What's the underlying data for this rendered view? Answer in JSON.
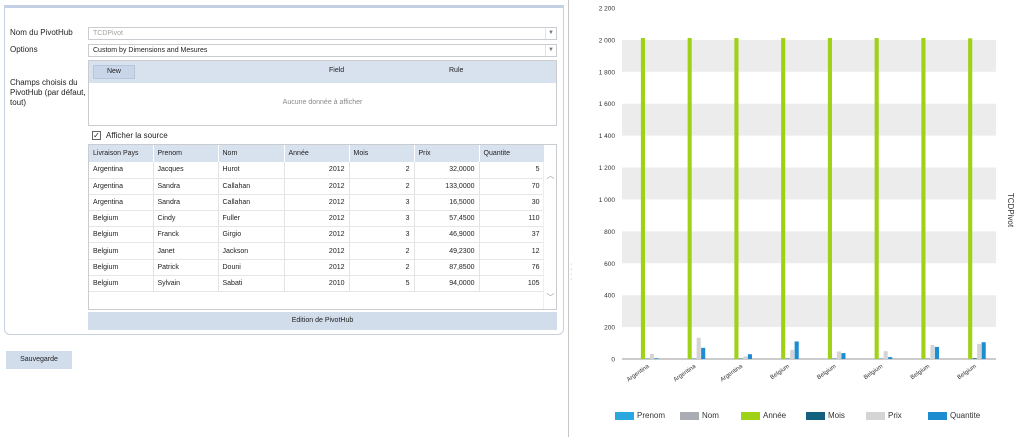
{
  "form": {
    "name_label": "Nom du PivotHub",
    "name_value": "TCDPivot",
    "options_label": "Options",
    "options_value": "Custom by Dimensions and Mesures",
    "fields_label": "Champs choisis du PivotHub (par défaut, tout)",
    "fields_header": {
      "new_button": "New",
      "field": "Field",
      "rule": "Rule"
    },
    "fields_empty": "Aucune donnée à afficher",
    "show_source_label": "Afficher la source",
    "show_source_checked": "✓",
    "edit_button": "Edition de PivotHub",
    "save_button": "Sauvegarde"
  },
  "grid": {
    "columns": [
      "Livraison Pays",
      "Prenom",
      "Nom",
      "Année",
      "Mois",
      "Prix",
      "Quantite"
    ],
    "rows": [
      [
        "Argentina",
        "Jacques",
        "Hurot",
        "2012",
        "2",
        "32,0000",
        "5"
      ],
      [
        "Argentina",
        "Sandra",
        "Callahan",
        "2012",
        "2",
        "133,0000",
        "70"
      ],
      [
        "Argentina",
        "Sandra",
        "Callahan",
        "2012",
        "3",
        "16,5000",
        "30"
      ],
      [
        "Belgium",
        "Cindy",
        "Fuller",
        "2012",
        "3",
        "57,4500",
        "110"
      ],
      [
        "Belgium",
        "Franck",
        "Girgio",
        "2012",
        "3",
        "46,9000",
        "37"
      ],
      [
        "Belgium",
        "Janet",
        "Jackson",
        "2012",
        "2",
        "49,2300",
        "12"
      ],
      [
        "Belgium",
        "Patrick",
        "Douni",
        "2012",
        "2",
        "87,8500",
        "76"
      ],
      [
        "Belgium",
        "Sylvain",
        "Sabati",
        "2010",
        "5",
        "94,0000",
        "105"
      ]
    ]
  },
  "chart_data": {
    "type": "bar",
    "title": "TCDPivot",
    "categories": [
      "Argentina",
      "Argentina",
      "Argentina",
      "Belgium",
      "Belgium",
      "Belgium",
      "Belgium",
      "Belgium"
    ],
    "ylim": [
      0,
      2200
    ],
    "yticks": [
      0,
      200,
      400,
      600,
      800,
      1000,
      1200,
      1400,
      1600,
      1800,
      2000,
      2200
    ],
    "ytick_labels": [
      "0",
      "200",
      "400",
      "600",
      "800",
      "1 000",
      "1 200",
      "1 400",
      "1 600",
      "1 800",
      "2 000",
      "2 200"
    ],
    "series": [
      {
        "name": "Prenom",
        "color": "#29a8e0",
        "values": [
          0,
          0,
          0,
          0,
          0,
          0,
          0,
          0
        ]
      },
      {
        "name": "Nom",
        "color": "#a9adb3",
        "values": [
          0,
          0,
          0,
          0,
          0,
          0,
          0,
          0
        ]
      },
      {
        "name": "Année",
        "color": "#9fd117",
        "values": [
          2012,
          2012,
          2012,
          2012,
          2012,
          2012,
          2012,
          2010
        ]
      },
      {
        "name": "Mois",
        "color": "#14607f",
        "values": [
          2,
          2,
          3,
          3,
          3,
          2,
          2,
          5
        ]
      },
      {
        "name": "Prix",
        "color": "#d4d4d4",
        "values": [
          32,
          133,
          16.5,
          57.45,
          46.9,
          49.23,
          87.85,
          94
        ]
      },
      {
        "name": "Quantite",
        "color": "#1b8dd0",
        "values": [
          5,
          70,
          30,
          110,
          37,
          12,
          76,
          105
        ]
      }
    ]
  }
}
